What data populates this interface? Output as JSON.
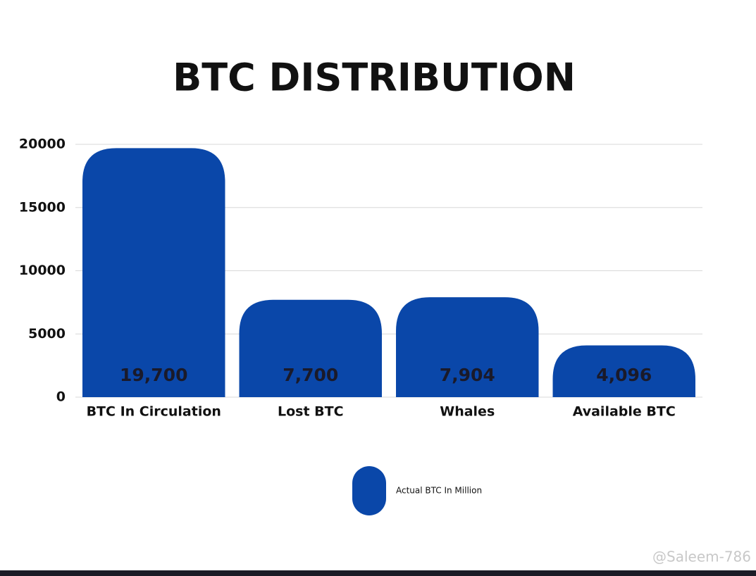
{
  "chart_data": {
    "type": "bar",
    "title": "BTC DISTRIBUTION",
    "categories": [
      "BTC In Circulation",
      "Lost BTC",
      "Whales",
      "Available BTC"
    ],
    "series": [
      {
        "name": "Actual BTC In Million",
        "color": "#0a47a9",
        "values": [
          19700,
          7700,
          7904,
          4096
        ],
        "value_labels": [
          "19,700",
          "7,700",
          "7,904",
          "4,096"
        ]
      }
    ],
    "ylim": [
      0,
      20000
    ],
    "yticks": [
      0,
      5000,
      10000,
      15000,
      20000
    ],
    "grid": true,
    "legend": "bottom",
    "watermark": "@Saleem-786"
  }
}
